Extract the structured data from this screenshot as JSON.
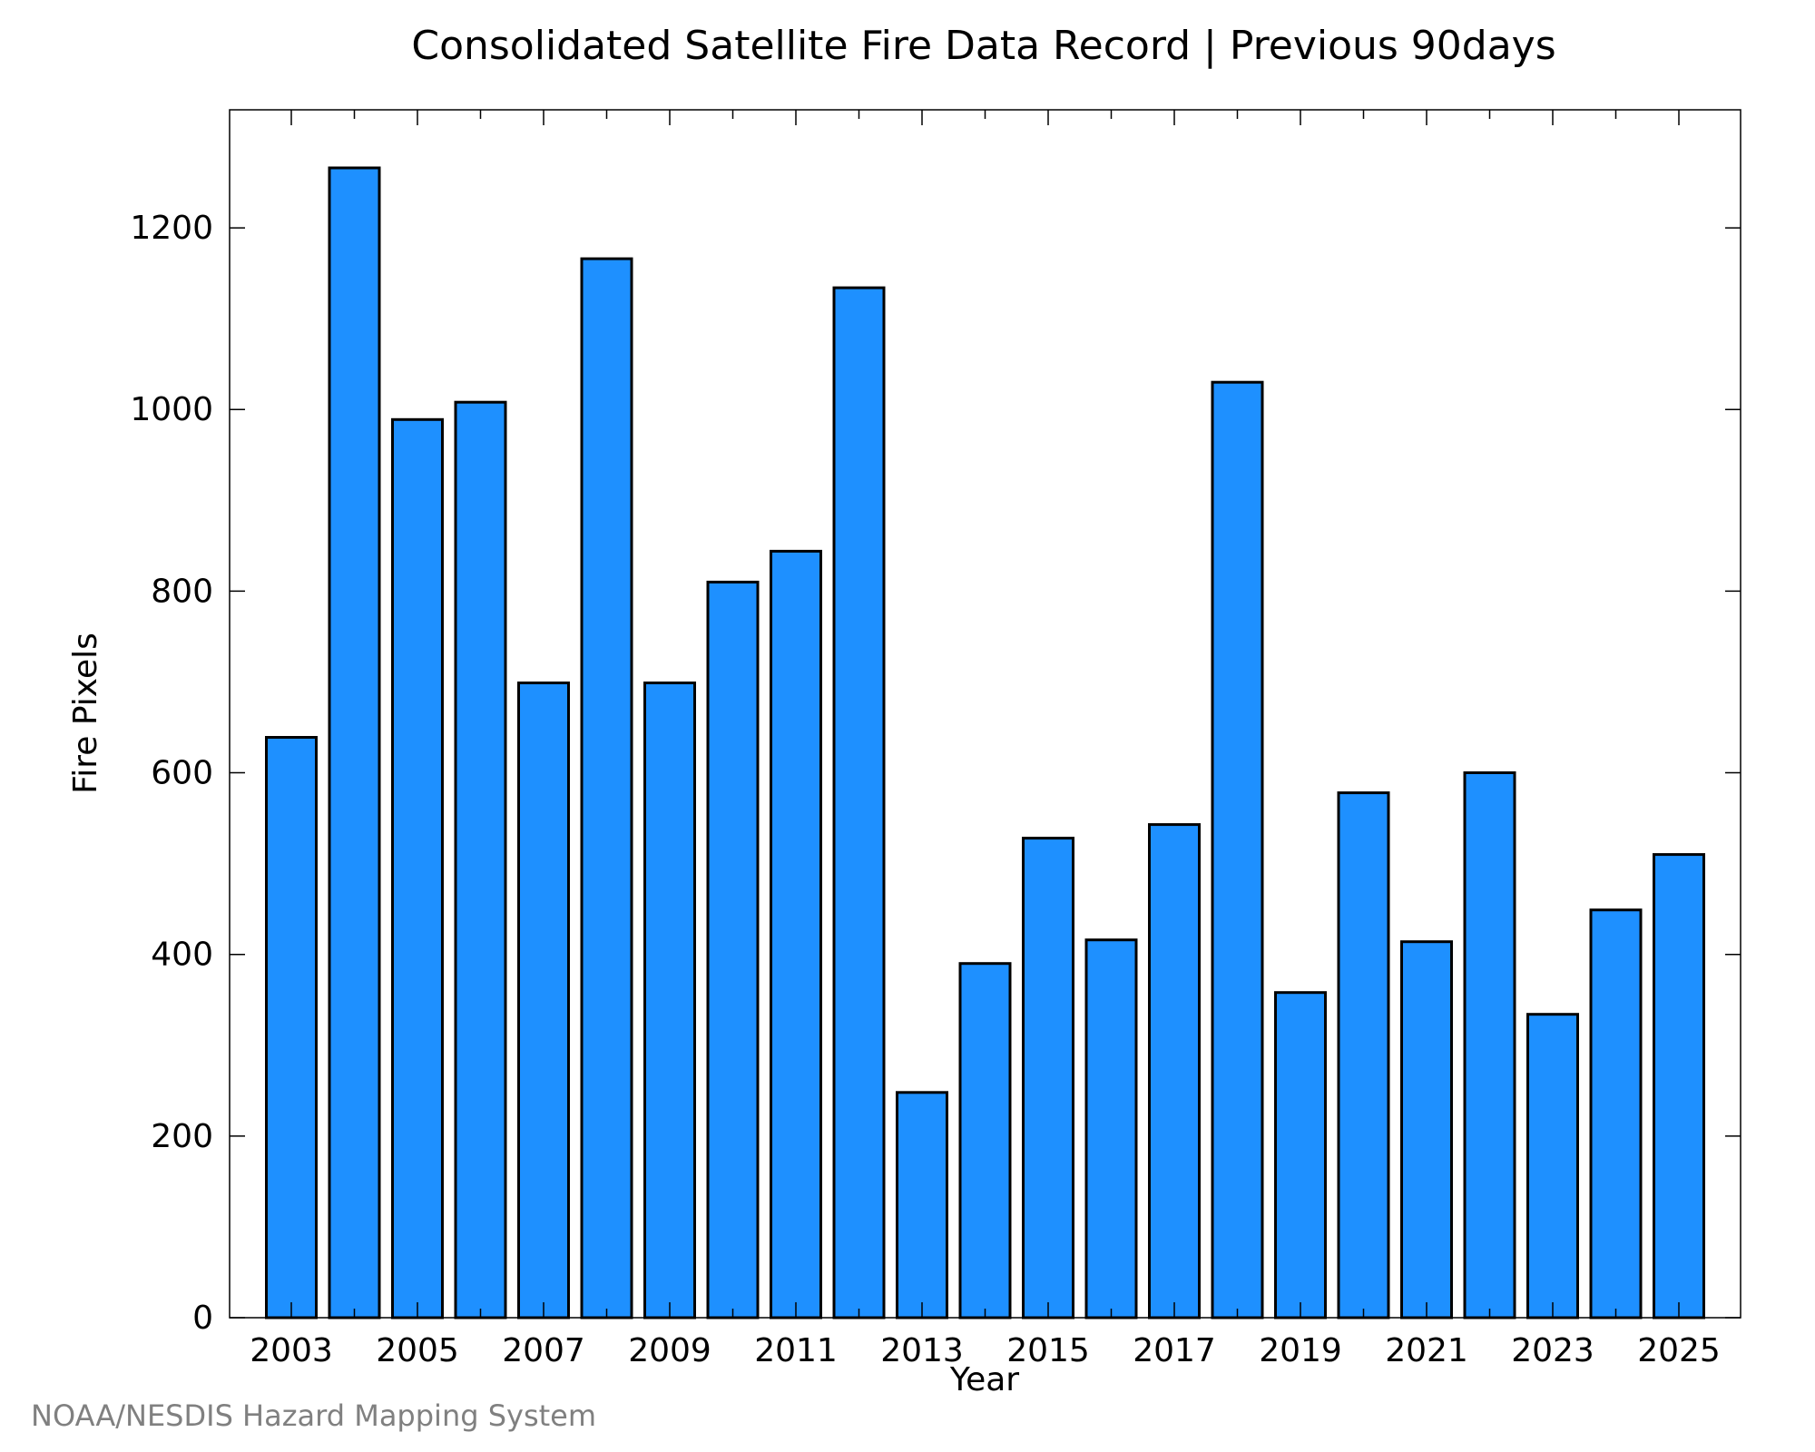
{
  "chart_data": {
    "type": "bar",
    "title": "Consolidated Satellite Fire Data Record | Previous 90days",
    "xlabel": "Year",
    "ylabel": "Fire Pixels",
    "categories": [
      "2003",
      "2004",
      "2005",
      "2006",
      "2007",
      "2008",
      "2009",
      "2010",
      "2011",
      "2012",
      "2013",
      "2014",
      "2015",
      "2016",
      "2017",
      "2018",
      "2019",
      "2020",
      "2021",
      "2022",
      "2023",
      "2024",
      "2025"
    ],
    "values": [
      639,
      1266,
      989,
      1008,
      699,
      1166,
      699,
      810,
      844,
      1134,
      248,
      390,
      528,
      416,
      543,
      1030,
      358,
      578,
      414,
      600,
      334,
      449,
      510
    ],
    "x_tick_labels": [
      "2003",
      "2005",
      "2007",
      "2009",
      "2011",
      "2013",
      "2015",
      "2017",
      "2019",
      "2021",
      "2023",
      "2025"
    ],
    "y_ticks": [
      0,
      200,
      400,
      600,
      800,
      1000,
      1200
    ],
    "ylim": [
      0,
      1330
    ],
    "grid": false,
    "bar_color": "#1e90ff",
    "bar_edge_color": "#000000"
  },
  "credit": "NOAA/NESDIS Hazard Mapping System"
}
